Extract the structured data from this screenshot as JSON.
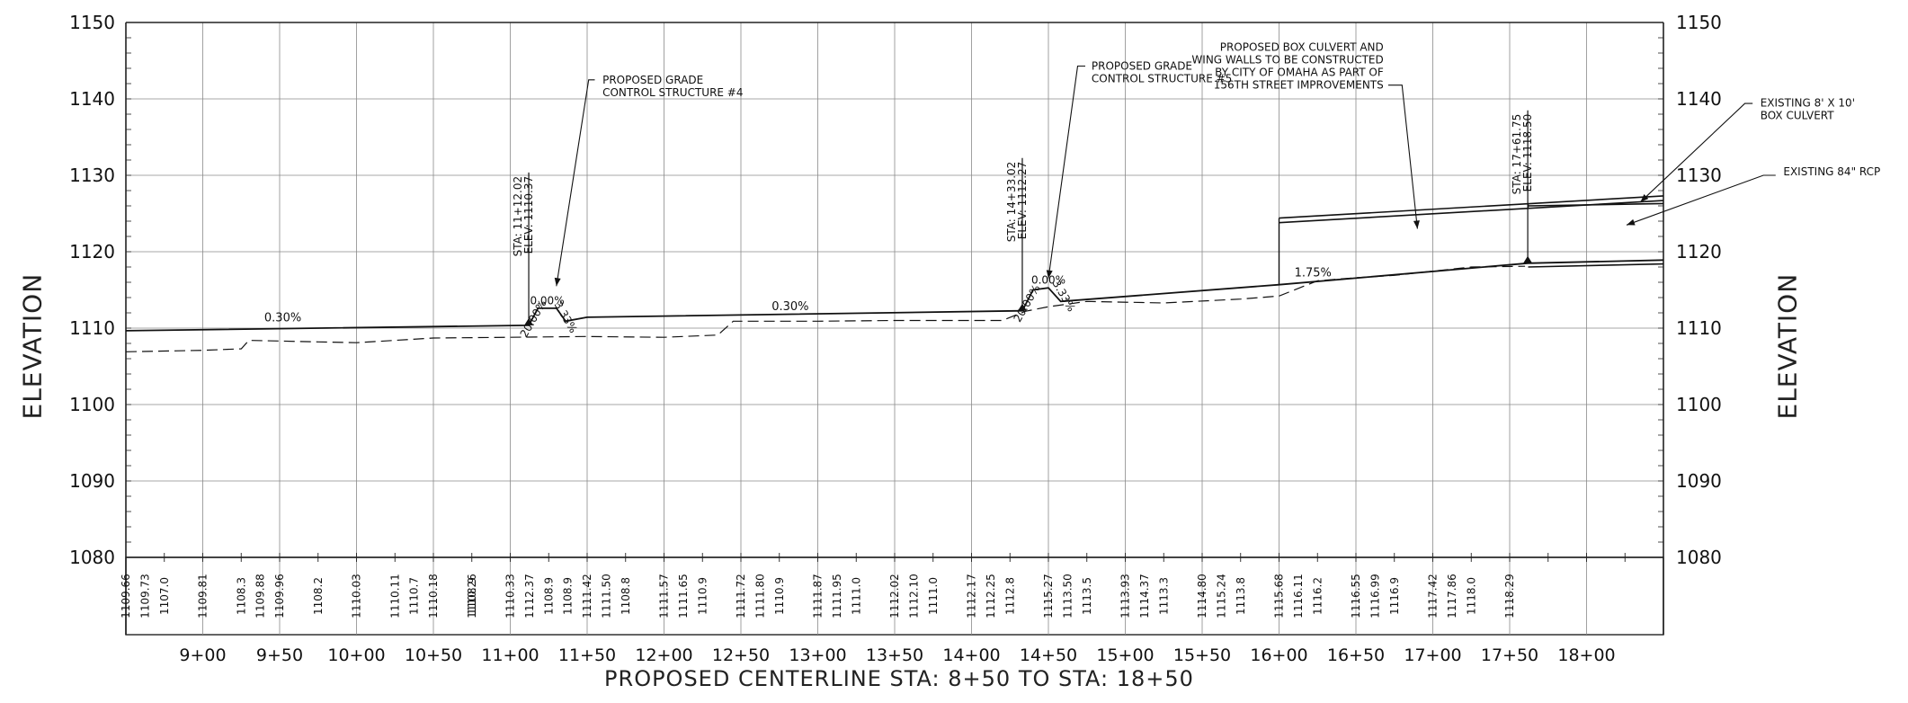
{
  "chart_data": {
    "type": "line",
    "title": "",
    "xlabel": "PROPOSED CENTERLINE STA: 8+50 TO STA: 18+50",
    "ylabel": "ELEVATION",
    "ylabel_right": "ELEVATION",
    "xlim": [
      850,
      1850
    ],
    "ylim": [
      1080,
      1150
    ],
    "grid": true,
    "y_ticks": [
      "1150",
      "1140",
      "1130",
      "1120",
      "1110",
      "1100",
      "1090",
      "1080"
    ],
    "x_ticks": [
      "9+00",
      "9+50",
      "10+00",
      "10+50",
      "11+00",
      "11+50",
      "12+00",
      "12+50",
      "13+00",
      "13+50",
      "14+00",
      "14+50",
      "15+00",
      "15+50",
      "16+00",
      "16+50",
      "17+00",
      "17+50",
      "18+00"
    ],
    "existing_elevations": [
      {
        "x": 875,
        "label": "1107.0"
      },
      {
        "x": 925,
        "label": "1108.3"
      },
      {
        "x": 975,
        "label": "1108.2"
      },
      {
        "x": 1025,
        "label": "1110.11"
      },
      {
        "x": 1075,
        "label": "1108.9"
      },
      {
        "x": 1125,
        "label": "1108.9"
      },
      {
        "x": 1175,
        "label": "1108.8"
      },
      {
        "x": 1225,
        "label": "1110.9"
      },
      {
        "x": 1275,
        "label": "1110.9"
      },
      {
        "x": 1325,
        "label": "1111.0"
      },
      {
        "x": 1375,
        "label": "1111.0"
      },
      {
        "x": 1425,
        "label": "1112.8"
      },
      {
        "x": 1475,
        "label": "1113.5"
      },
      {
        "x": 1525,
        "label": "1113.3"
      },
      {
        "x": 1575,
        "label": "1113.8"
      },
      {
        "x": 1625,
        "label": "1116.2"
      },
      {
        "x": 1675,
        "label": "1116.9"
      },
      {
        "x": 1725,
        "label": "1118.0"
      }
    ],
    "proposed_elevations": [
      {
        "x": 850,
        "label": "1109.66"
      },
      {
        "x": 900,
        "label": "1109.81"
      },
      {
        "x": 950,
        "label": "1109.96"
      },
      {
        "x": 1000,
        "label": "1110.03"
      },
      {
        "x": 1050,
        "label": "1110.18"
      },
      {
        "x": 1075,
        "label": "1110.26"
      },
      {
        "x": 1100,
        "label": "1110.33"
      },
      {
        "x": 1150,
        "label": "1111.42"
      },
      {
        "x": 1200,
        "label": "1111.57"
      },
      {
        "x": 1250,
        "label": "1111.72"
      },
      {
        "x": 1300,
        "label": "1111.87"
      },
      {
        "x": 1350,
        "label": "1112.02"
      },
      {
        "x": 1400,
        "label": "1112.17"
      },
      {
        "x": 1450,
        "label": "1115.27"
      },
      {
        "x": 1500,
        "label": "1113.93"
      },
      {
        "x": 1550,
        "label": "1114.80"
      },
      {
        "x": 1600,
        "label": "1115.68"
      },
      {
        "x": 1650,
        "label": "1116.55"
      },
      {
        "x": 1700,
        "label": "1117.42"
      },
      {
        "x": 1750,
        "label": "1118.29"
      }
    ],
    "extra_elevations": [
      {
        "x": 862.5,
        "label": "1109.73"
      },
      {
        "x": 937.5,
        "label": "1109.88"
      },
      {
        "x": 1037.5,
        "label": "1110.7"
      },
      {
        "x": 1112.5,
        "label": "1112.37"
      },
      {
        "x": 1137.5,
        "label": "1108.9"
      },
      {
        "x": 1162.5,
        "label": "1111.50"
      },
      {
        "x": 1212.5,
        "label": "1111.65"
      },
      {
        "x": 1262.5,
        "label": "1111.80"
      },
      {
        "x": 1312.5,
        "label": "1111.95"
      },
      {
        "x": 1362.5,
        "label": "1112.10"
      },
      {
        "x": 1412.5,
        "label": "1112.25"
      },
      {
        "x": 1462.5,
        "label": "1113.50"
      },
      {
        "x": 1512.5,
        "label": "1114.37"
      },
      {
        "x": 1562.5,
        "label": "1115.24"
      },
      {
        "x": 1612.5,
        "label": "1116.11"
      },
      {
        "x": 1662.5,
        "label": "1116.99"
      },
      {
        "x": 1712.5,
        "label": "1117.86"
      }
    ],
    "series": [
      {
        "kind": "proposed-grade",
        "points": [
          [
            850,
            1109.66
          ],
          [
            1112.02,
            1110.37
          ],
          [
            1118,
            1112.6
          ],
          [
            1130,
            1112.6
          ],
          [
            1136,
            1110.9
          ],
          [
            1150,
            1111.42
          ],
          [
            1433.02,
            1112.27
          ],
          [
            1440,
            1115.0
          ],
          [
            1450,
            1115.27
          ],
          [
            1458,
            1113.5
          ],
          [
            1600,
            1115.68
          ],
          [
            1761.75,
            1118.5
          ],
          [
            1850,
            1118.9
          ]
        ]
      },
      {
        "kind": "existing-ground",
        "points": [
          [
            850,
            1106.9
          ],
          [
            900,
            1107.1
          ],
          [
            925,
            1107.3
          ],
          [
            930,
            1108.4
          ],
          [
            975,
            1108.2
          ],
          [
            1000,
            1108.1
          ],
          [
            1050,
            1108.7
          ],
          [
            1100,
            1108.8
          ],
          [
            1150,
            1108.9
          ],
          [
            1200,
            1108.8
          ],
          [
            1235,
            1109.1
          ],
          [
            1245,
            1110.9
          ],
          [
            1300,
            1110.9
          ],
          [
            1350,
            1111.0
          ],
          [
            1420,
            1111.0
          ],
          [
            1435,
            1112.2
          ],
          [
            1450,
            1112.8
          ],
          [
            1475,
            1113.5
          ],
          [
            1525,
            1113.3
          ],
          [
            1575,
            1113.8
          ],
          [
            1600,
            1114.2
          ],
          [
            1625,
            1116.2
          ],
          [
            1650,
            1116.6
          ],
          [
            1675,
            1116.9
          ],
          [
            1725,
            1118.0
          ],
          [
            1760,
            1118.1
          ]
        ]
      }
    ],
    "structures": [
      {
        "x1": 1600,
        "x2": 1850,
        "y1": 1124.4,
        "y2": 1127.3,
        "kind": "box-culvert-top"
      },
      {
        "x1": 1600,
        "x2": 1850,
        "y1": 1123.8,
        "y2": 1126.7,
        "kind": "box-culvert-inner"
      },
      {
        "x1": 1762,
        "x2": 1850,
        "y1": 1126.0,
        "y2": 1126.3,
        "kind": "existing-pipe"
      },
      {
        "x1": 1762,
        "x2": 1850,
        "y1": 1118.0,
        "y2": 1118.4,
        "kind": "existing-pipe-invert"
      }
    ],
    "stations": [
      {
        "x": 1112.02,
        "y": 1110.37,
        "label": "STA: 11+12.02",
        "elev": "ELEV: 1110.37"
      },
      {
        "x": 1433.02,
        "y": 1112.27,
        "label": "STA: 14+33.02",
        "elev": "ELEV: 1112.27"
      },
      {
        "x": 1761.75,
        "y": 1118.5,
        "label": "STA: 17+61.75",
        "elev": "ELEV: 1118.50"
      }
    ],
    "grades": [
      {
        "x": 940,
        "y": 1110.4,
        "text": "0.30%"
      },
      {
        "x": 1270,
        "y": 1111.9,
        "text": "0.30%"
      },
      {
        "x": 1610,
        "y": 1116.3,
        "text": "1.75%"
      }
    ],
    "structure_grades": [
      {
        "x": 1117,
        "y": 1111.0,
        "text": "20.00%",
        "angle": -60
      },
      {
        "x": 1124,
        "y": 1113.1,
        "text": "0.00%",
        "angle": 0
      },
      {
        "x": 1134,
        "y": 1111.2,
        "text": "3.33%",
        "angle": 60
      },
      {
        "x": 1438,
        "y": 1113.0,
        "text": "20.00%",
        "angle": -60
      },
      {
        "x": 1450,
        "y": 1115.8,
        "text": "0.00%",
        "angle": 0
      },
      {
        "x": 1458,
        "y": 1114.0,
        "text": "3.33%",
        "angle": 60
      }
    ],
    "annotations": [
      {
        "lines": [
          "PROPOSED GRADE",
          "CONTROL STRUCTURE #4"
        ],
        "tx": 1160,
        "ty": 1142.0,
        "leader": [
          [
            1155,
            1142.5
          ],
          [
            1151,
            1142.5
          ],
          [
            1130,
            1115.5
          ]
        ]
      },
      {
        "lines": [
          "PROPOSED GRADE",
          "CONTROL STRUCTURE #5"
        ],
        "tx": 1478,
        "ty": 1143.8,
        "leader": [
          [
            1474,
            1144.3
          ],
          [
            1469,
            1144.3
          ],
          [
            1450,
            1116.5
          ]
        ]
      },
      {
        "lines": [
          "PROPOSED BOX CULVERT AND",
          "WING WALLS TO BE CONSTRUCTED",
          "BY CITY OF OMAHA AS PART OF",
          "156TH STREET IMPROVEMENTS"
        ],
        "tx": 1668,
        "ty": 1146.3,
        "anchor": "end",
        "leader": [
          [
            1671,
            1141.8
          ],
          [
            1680,
            1141.8
          ],
          [
            1690,
            1123.0
          ]
        ]
      },
      {
        "lines": [
          "EXISTING 8' X 10'",
          "BOX CULVERT"
        ],
        "tx": 1913,
        "ty": 1139.0,
        "leader": [
          [
            1908,
            1139.4
          ],
          [
            1903,
            1139.4
          ],
          [
            1835,
            1126.5
          ]
        ]
      },
      {
        "lines": [
          "EXISTING 84\" RCP"
        ],
        "tx": 1928,
        "ty": 1130.0,
        "leader": [
          [
            1923,
            1130.0
          ],
          [
            1915,
            1130.0
          ],
          [
            1826,
            1123.5
          ]
        ]
      }
    ]
  }
}
